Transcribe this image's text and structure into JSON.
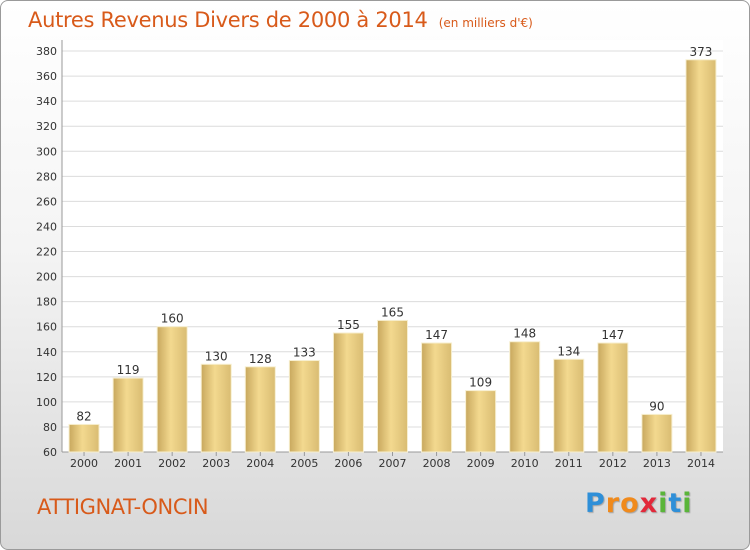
{
  "chart_data": {
    "type": "bar",
    "title": "Autres Revenus Divers de 2000 à 2014",
    "subtitle": "(en milliers d'€)",
    "xlabel": "",
    "ylabel": "",
    "categories": [
      "2000",
      "2001",
      "2002",
      "2003",
      "2004",
      "2005",
      "2006",
      "2007",
      "2008",
      "2009",
      "2010",
      "2011",
      "2012",
      "2013",
      "2014"
    ],
    "values": [
      82,
      119,
      160,
      130,
      128,
      133,
      155,
      165,
      147,
      109,
      148,
      134,
      147,
      90,
      373
    ],
    "ylim": [
      60,
      380
    ],
    "ytick_step": 20,
    "grid": true,
    "data_labels": true
  },
  "location": "ATTIGNAT-ONCIN",
  "logo": {
    "letters": [
      "P",
      "r",
      "o",
      "x",
      "i",
      "t",
      "i"
    ],
    "colors": [
      "#2e8fd8",
      "#f08a1c",
      "#f08a1c",
      "#e2283a",
      "#5ab53a",
      "#2e8fd8",
      "#5ab53a"
    ]
  },
  "colors": {
    "title": "#d85a1a",
    "bar_light": "#f5dc9a",
    "bar_dark": "#c8a85e"
  }
}
